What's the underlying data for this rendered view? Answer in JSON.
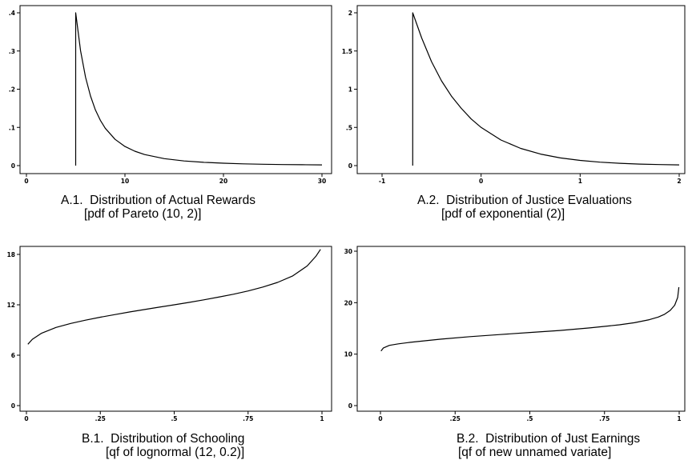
{
  "figure": {
    "panels": [
      {
        "id": "A1",
        "caption_line1": "A.1.  Distribution of Actual Rewards",
        "caption_line2": "[pdf of Pareto (10, 2)]"
      },
      {
        "id": "A2",
        "caption_line1": "A.2.  Distribution of Justice Evaluations",
        "caption_line2": "[pdf of exponential (2)]"
      },
      {
        "id": "B1",
        "caption_line1": "B.1.  Distribution of Schooling",
        "caption_line2": "[qf of lognormal (12, 0.2)]"
      },
      {
        "id": "B2",
        "caption_line1": "B.2.  Distribution of Just Earnings",
        "caption_line2": "[qf of new unnamed variate]"
      }
    ]
  },
  "chart_data": [
    {
      "type": "line",
      "title": "A.1.  Distribution of Actual Rewards",
      "subtitle": "[pdf of Pareto (10, 2)]",
      "xlim": [
        0,
        30
      ],
      "ylim": [
        0,
        0.4
      ],
      "xticks": [
        0,
        10,
        20,
        30
      ],
      "xtick_labels": [
        "0",
        "10",
        "20",
        "30"
      ],
      "yticks": [
        0,
        0.1,
        0.2,
        0.3,
        0.4
      ],
      "ytick_labels": [
        "0",
        ".1",
        ".2",
        ".3",
        ".4"
      ],
      "series": [
        {
          "x": [
            5,
            5,
            5.5,
            6,
            6.5,
            7,
            7.5,
            8,
            9,
            10,
            11,
            12,
            14,
            16,
            18,
            20,
            22,
            24,
            26,
            28,
            30
          ],
          "y": [
            0,
            0.4,
            0.3005,
            0.2315,
            0.1821,
            0.1458,
            0.1185,
            0.0977,
            0.0686,
            0.05,
            0.0376,
            0.0289,
            0.0182,
            0.0122,
            0.0086,
            0.0063,
            0.0047,
            0.0036,
            0.0028,
            0.0023,
            0.0019
          ]
        }
      ]
    },
    {
      "type": "line",
      "title": "A.2.  Distribution of Justice Evaluations",
      "subtitle": "[pdf of exponential (2)]",
      "xlim": [
        -1,
        2
      ],
      "ylim": [
        0,
        2
      ],
      "xticks": [
        -1,
        0,
        1,
        2
      ],
      "xtick_labels": [
        "-1",
        "0",
        "1",
        "2"
      ],
      "yticks": [
        0,
        0.5,
        1,
        1.5,
        2
      ],
      "ytick_labels": [
        "0",
        ".5",
        "1",
        "1.5",
        "2"
      ],
      "series": [
        {
          "x": [
            -0.69,
            -0.69,
            -0.6,
            -0.5,
            -0.4,
            -0.3,
            -0.2,
            -0.1,
            0,
            0.2,
            0.4,
            0.6,
            0.8,
            1.0,
            1.2,
            1.4,
            1.6,
            1.8,
            2.0
          ],
          "y": [
            0,
            2,
            1.67,
            1.36,
            1.11,
            0.91,
            0.75,
            0.61,
            0.5,
            0.335,
            0.225,
            0.151,
            0.101,
            0.068,
            0.045,
            0.03,
            0.02,
            0.014,
            0.009
          ]
        }
      ]
    },
    {
      "type": "line",
      "title": "B.1.  Distribution of Schooling",
      "subtitle": "[qf of lognormal (12, 0.2)]",
      "xlim": [
        0,
        1
      ],
      "ylim": [
        0,
        18
      ],
      "xticks": [
        0,
        0.25,
        0.5,
        0.75,
        1
      ],
      "xtick_labels": [
        "0",
        ".25",
        ".5",
        ".75",
        "1"
      ],
      "yticks": [
        0,
        6,
        12,
        18
      ],
      "ytick_labels": [
        "0",
        "6",
        "12",
        "18"
      ],
      "series": [
        {
          "x": [
            0.005,
            0.02,
            0.05,
            0.1,
            0.15,
            0.2,
            0.25,
            0.3,
            0.35,
            0.4,
            0.45,
            0.5,
            0.55,
            0.6,
            0.65,
            0.7,
            0.75,
            0.8,
            0.85,
            0.9,
            0.95,
            0.98,
            0.995
          ],
          "y": [
            7.3,
            7.9,
            8.6,
            9.3,
            9.78,
            10.17,
            10.52,
            10.84,
            11.15,
            11.44,
            11.72,
            12.0,
            12.29,
            12.59,
            12.91,
            13.26,
            13.65,
            14.11,
            14.67,
            15.42,
            16.63,
            17.8,
            18.6
          ]
        }
      ]
    },
    {
      "type": "line",
      "title": "B.2.  Distribution of Just Earnings",
      "subtitle": "[qf of new unnamed variate]",
      "xlim": [
        0,
        1
      ],
      "ylim": [
        0,
        30
      ],
      "xticks": [
        0,
        0.25,
        0.5,
        0.75,
        1
      ],
      "xtick_labels": [
        "0",
        ".25",
        ".5",
        ".75",
        "1"
      ],
      "yticks": [
        0,
        10,
        20,
        30
      ],
      "ytick_labels": [
        "0",
        "10",
        "20",
        "30"
      ],
      "series": [
        {
          "x": [
            0.002,
            0.01,
            0.03,
            0.06,
            0.1,
            0.2,
            0.3,
            0.4,
            0.5,
            0.6,
            0.7,
            0.8,
            0.85,
            0.9,
            0.93,
            0.95,
            0.97,
            0.985,
            0.995,
            0.999
          ],
          "y": [
            10.6,
            11.2,
            11.7,
            12.0,
            12.3,
            12.9,
            13.4,
            13.8,
            14.2,
            14.6,
            15.1,
            15.7,
            16.1,
            16.7,
            17.2,
            17.7,
            18.5,
            19.5,
            21.0,
            23.0
          ]
        }
      ]
    }
  ]
}
